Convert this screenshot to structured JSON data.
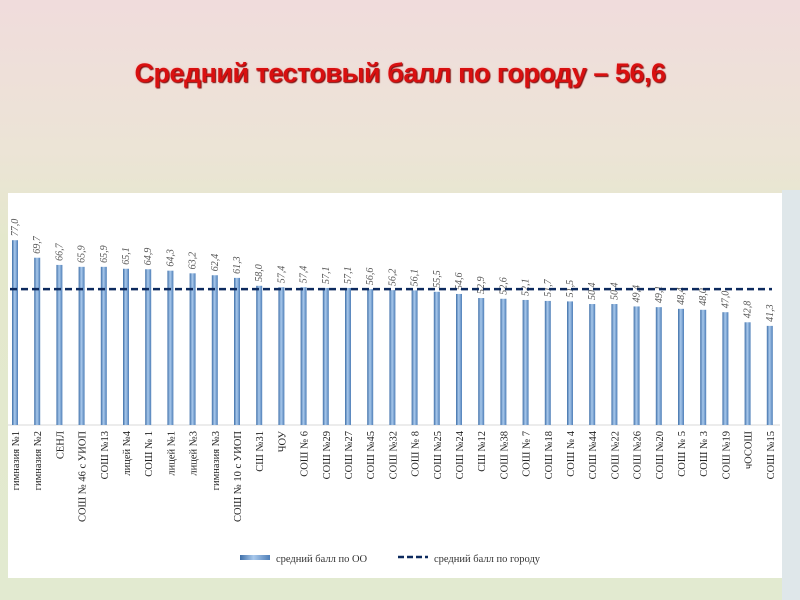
{
  "title": "Средний тестовый балл по городу – 56,6",
  "chart_data": {
    "type": "bar",
    "title": "Средний тестовый балл по городу – 56,6",
    "categories": [
      "гимназия №1",
      "гимназия №2",
      "СЕНЛ",
      "СОШ №  46 с УИОП",
      "СОШ №13",
      "лицей №4",
      "СОШ № 1",
      "лицей №1",
      "лицей №3",
      "гимназия №3",
      "СОШ №  10 с УИОП",
      "СШ №31",
      "ЧОУ",
      "СОШ № 6",
      "СОШ №29",
      "СОШ №27",
      "СОШ №45",
      "СОШ №32",
      "СОШ № 8",
      "СОШ №25",
      "СОШ №24",
      "СШ №12",
      "СОШ №38",
      "СОШ № 7",
      "СОШ №18",
      "СОШ № 4",
      "СОШ №44",
      "СОШ №22",
      "СОШ №26",
      "СОШ №20",
      "СОШ № 5",
      "СОШ № 3",
      "СОШ №19",
      "чОСОШ",
      "СОШ №15"
    ],
    "series": [
      {
        "name": "средний балл по ОО",
        "type": "bar",
        "color": "#6f9fd0",
        "values": [
          77.0,
          69.7,
          66.7,
          65.9,
          65.9,
          65.1,
          64.9,
          64.3,
          63.2,
          62.4,
          61.3,
          58.0,
          57.4,
          57.4,
          57.1,
          57.1,
          56.6,
          56.2,
          56.1,
          55.5,
          54.6,
          52.9,
          52.6,
          52.1,
          51.7,
          51.5,
          50.4,
          50.4,
          49.4,
          49.1,
          48.4,
          48.0,
          47.0,
          42.8,
          41.3
        ]
      },
      {
        "name": "средний балл по городу",
        "type": "line",
        "style": "dashed",
        "color": "#0d2a5e",
        "value": 56.6
      }
    ],
    "ylim": [
      0,
      80
    ],
    "grid": false,
    "legend": "bottom",
    "value_labels": true
  }
}
